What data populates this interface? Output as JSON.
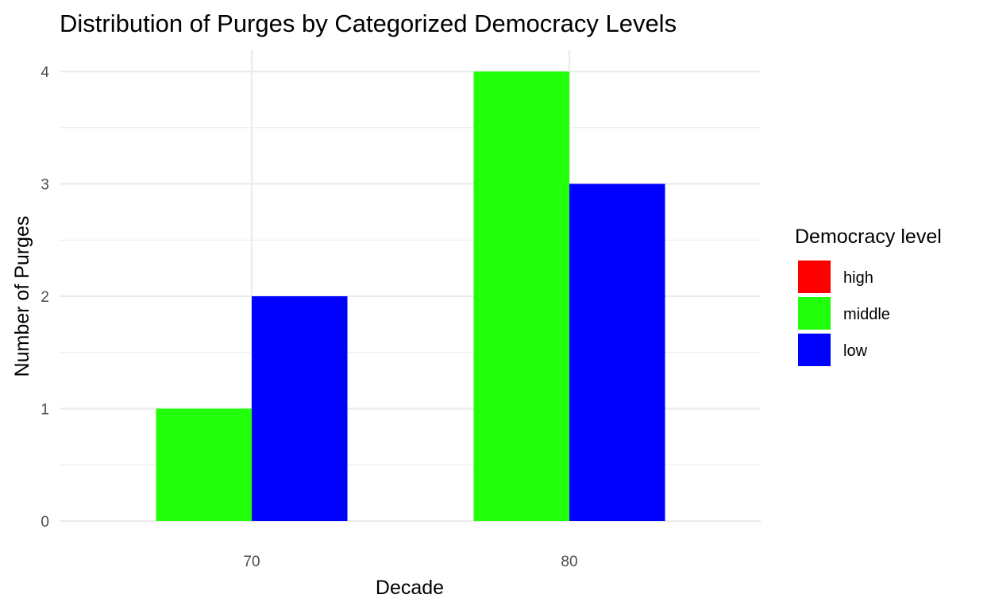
{
  "chart_data": {
    "type": "bar",
    "title": "Distribution of Purges by Categorized Democracy Levels",
    "xlabel": "Decade",
    "ylabel": "Number of Purges",
    "categories": [
      "70",
      "80"
    ],
    "y_ticks": [
      "0",
      "1",
      "2",
      "3",
      "4"
    ],
    "ylim": [
      0,
      4
    ],
    "grid": true,
    "legend": {
      "title": "Democracy level",
      "position": "right"
    },
    "series": [
      {
        "name": "high",
        "color": "#ff0000",
        "values": [
          0,
          0
        ]
      },
      {
        "name": "middle",
        "color": "#22ff0a",
        "values": [
          1,
          4
        ]
      },
      {
        "name": "low",
        "color": "#0000ff",
        "values": [
          2,
          3
        ]
      }
    ]
  }
}
